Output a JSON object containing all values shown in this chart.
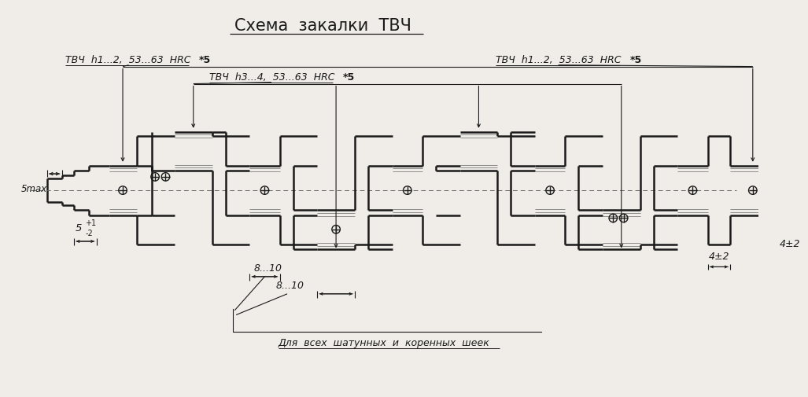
{
  "title": "Схема  закалки  ТВЧ",
  "bg_color": "#f0ede8",
  "line_color": "#1a1a1a",
  "label_top_left": "ТВЧ  h1...2,  53...63  HRC",
  "label_top_left_star": "*5",
  "label_top_middle": "ТВЧ  h3...4,  53...63  HRC",
  "label_top_middle_star": "*5",
  "label_top_right": "ТВЧ  h1...2,  53...63  HRC",
  "label_top_right_star": "*5",
  "dim_5max": "5max",
  "dim_5plus": "5",
  "dim_5plus_sup": "+1",
  "dim_5plus_sub": "-2",
  "dim_8_10_a": "8...10",
  "dim_8_10_b": "8...10",
  "dim_4pm2_a": "4±2",
  "dim_4pm2_b": "4±2",
  "note": "Для  всех  шатунных  и  коренных  шеек"
}
